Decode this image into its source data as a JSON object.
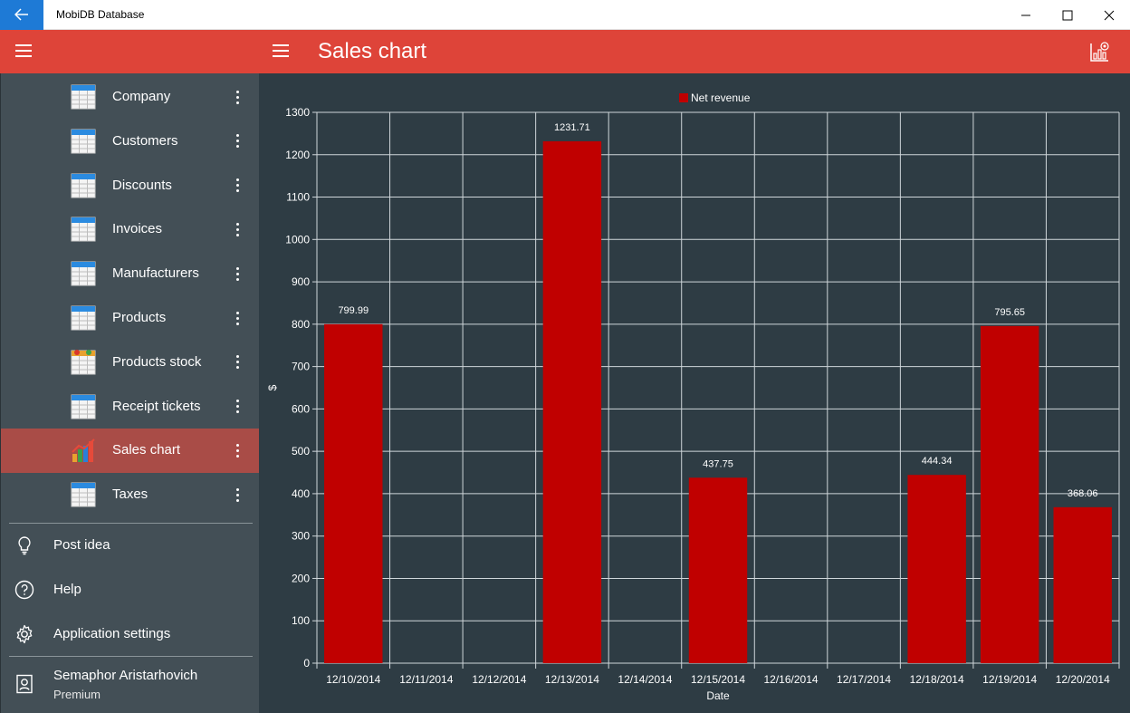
{
  "window": {
    "title": "MobiDB Database"
  },
  "header": {
    "title": "Sales chart"
  },
  "sidebar": {
    "items": [
      {
        "label": "Company",
        "icon": "table-icon"
      },
      {
        "label": "Customers",
        "icon": "table-icon"
      },
      {
        "label": "Discounts",
        "icon": "table-icon"
      },
      {
        "label": "Invoices",
        "icon": "table-icon"
      },
      {
        "label": "Manufacturers",
        "icon": "table-icon"
      },
      {
        "label": "Products",
        "icon": "table-icon"
      },
      {
        "label": "Products stock",
        "icon": "stock-table-icon"
      },
      {
        "label": "Receipt tickets",
        "icon": "table-icon"
      },
      {
        "label": "Sales chart",
        "icon": "bar-chart-icon",
        "active": true
      },
      {
        "label": "Taxes",
        "icon": "table-icon"
      }
    ],
    "bottom": {
      "post_idea": "Post idea",
      "help": "Help",
      "settings": "Application settings"
    },
    "user": {
      "name": "Semaphor Aristarhovich",
      "plan": "Premium"
    }
  },
  "colors": {
    "accent": "#de4439",
    "bar": "#c00000",
    "sidebar": "#434f56",
    "chart_bg": "#2e3c44",
    "active_item": "#a94c47"
  },
  "chart_data": {
    "type": "bar",
    "categories": [
      "12/10/2014",
      "12/11/2014",
      "12/12/2014",
      "12/13/2014",
      "12/14/2014",
      "12/15/2014",
      "12/16/2014",
      "12/17/2014",
      "12/18/2014",
      "12/19/2014",
      "12/20/2014"
    ],
    "series": [
      {
        "name": "Net revenue",
        "values": [
          799.99,
          0,
          0,
          1231.71,
          0,
          437.75,
          0,
          0,
          444.34,
          795.65,
          368.06
        ]
      }
    ],
    "labels": [
      "799.99",
      "",
      "",
      "1231.71",
      "",
      "437.75",
      "",
      "",
      "444.34",
      "795.65",
      "368.06"
    ],
    "xlabel": "Date",
    "ylabel": "$",
    "ylim": [
      0,
      1300
    ],
    "yticks": [
      "0",
      "100",
      "200",
      "300",
      "400",
      "500",
      "600",
      "700",
      "800",
      "900",
      "1000",
      "1100",
      "1200",
      "1300"
    ],
    "grid": true,
    "legend": "top-center"
  }
}
